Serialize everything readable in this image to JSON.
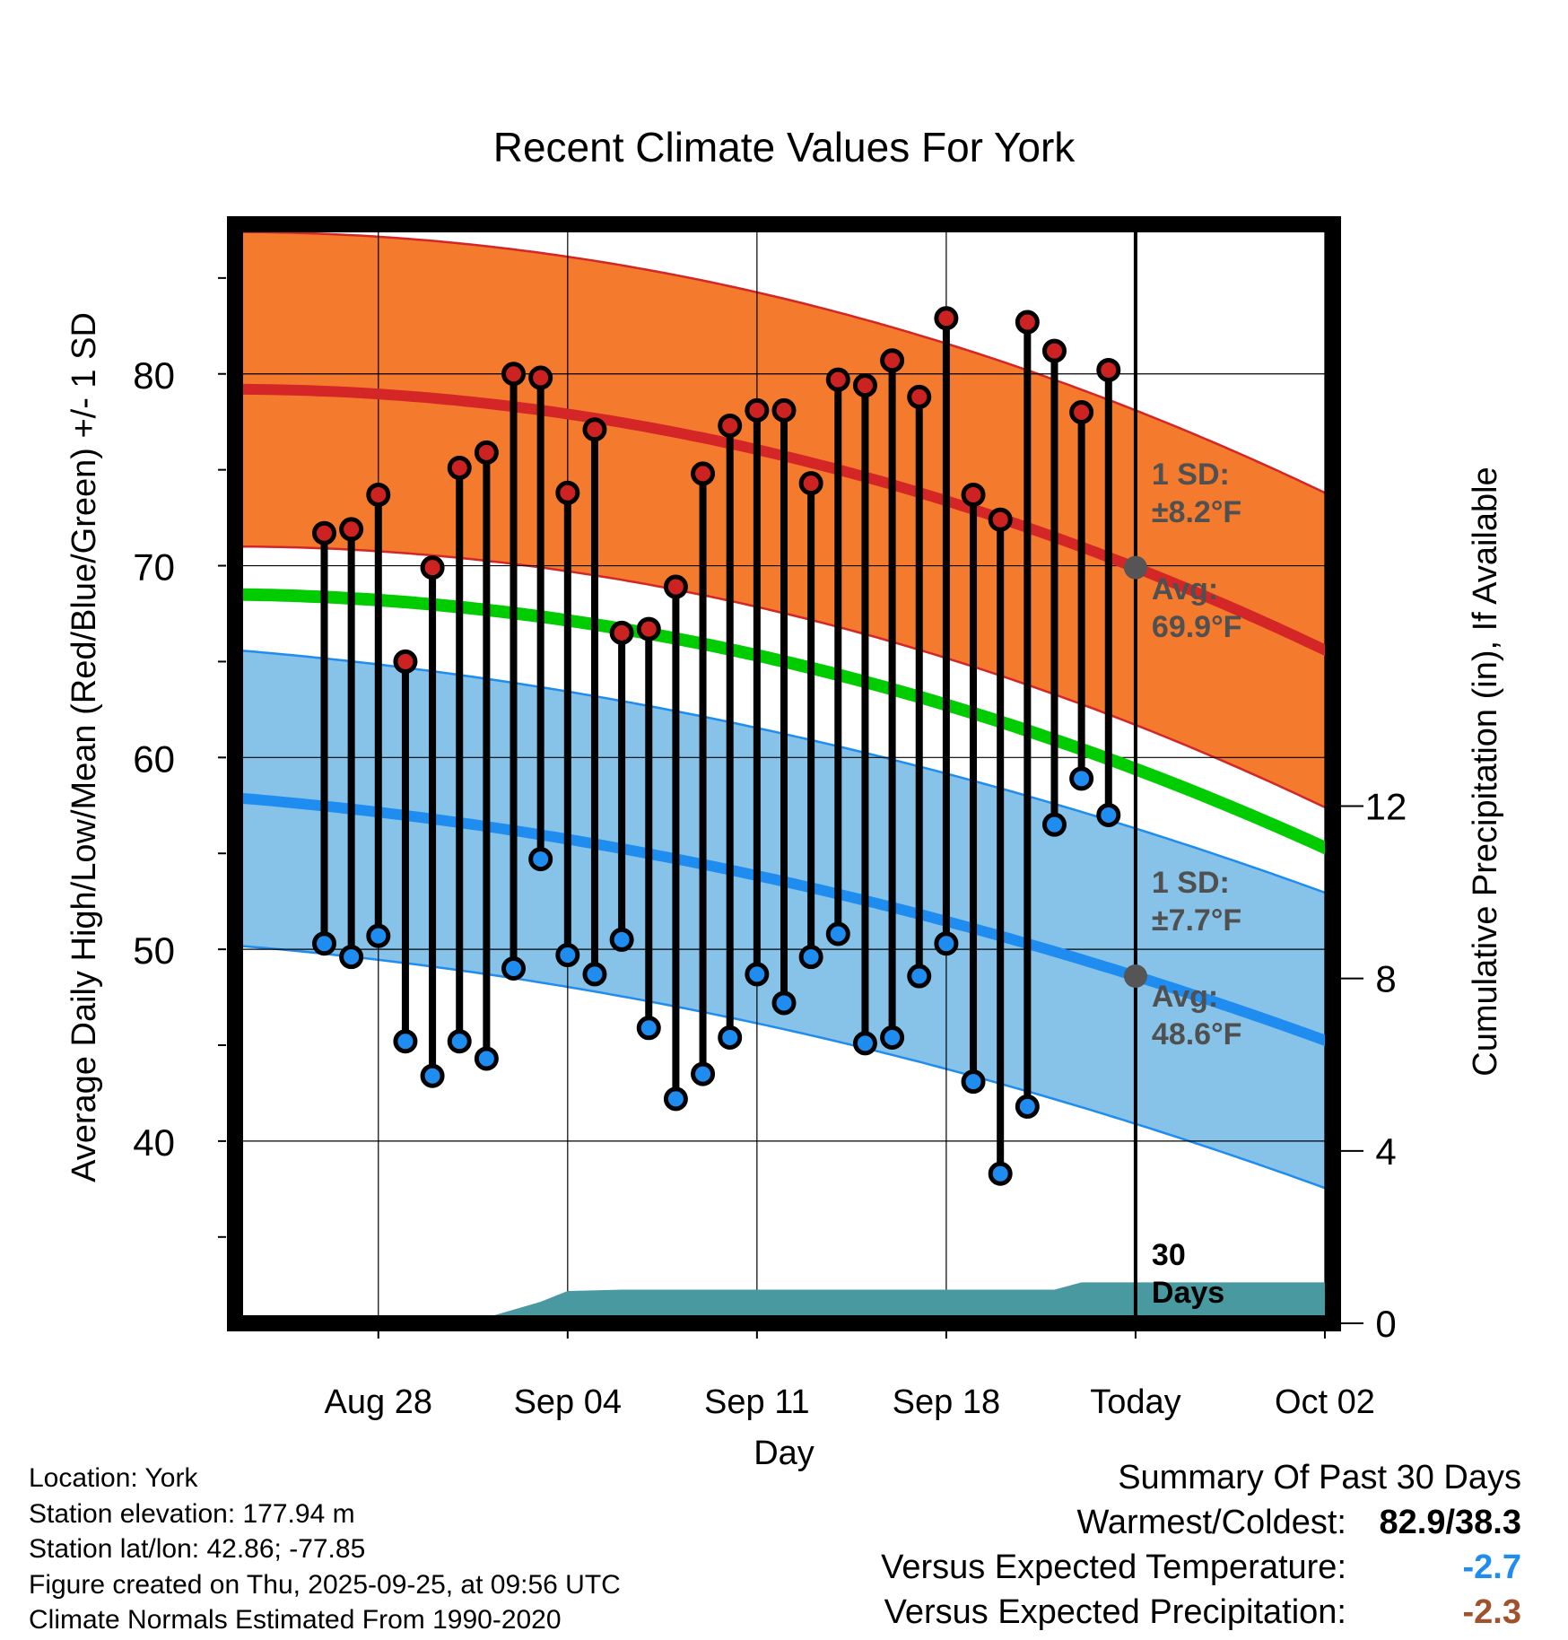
{
  "chart_data": {
    "type": "line",
    "title": "Recent Climate Values For York",
    "xlabel": "Day",
    "ylabel": "Average Daily High/Low/Mean (Red/Blue/Green) +/- 1 SD",
    "ylabel_right": "Cumulative Precipitation (in), If Available",
    "x_range_days": [
      -33.3,
      7.3
    ],
    "ylim": [
      30.5,
      87.8
    ],
    "y_ticks": [
      40,
      50,
      60,
      70,
      80
    ],
    "x_ticks": [
      {
        "day": -28,
        "label": "Aug 28"
      },
      {
        "day": -21,
        "label": "Sep 04"
      },
      {
        "day": -14,
        "label": "Sep 11"
      },
      {
        "day": -7,
        "label": "Sep 18"
      },
      {
        "day": 0,
        "label": "Today"
      },
      {
        "day": 7,
        "label": "Oct 02"
      }
    ],
    "precip_axis": {
      "range": [
        0,
        25.5
      ],
      "ticks": [
        0,
        4,
        8,
        12
      ]
    },
    "normals": {
      "high_avg": {
        "start": 79.2,
        "at_today": 69.9,
        "end": 65.4
      },
      "high_sd": 8.2,
      "low_avg": {
        "start": 57.9,
        "at_today": 48.6,
        "end": 45.1
      },
      "low_sd": 7.7,
      "mean_avg": {
        "start": 68.5,
        "at_today": 59.4,
        "end": 55.1
      }
    },
    "daily": {
      "days": [
        -30,
        -29,
        -28,
        -27,
        -26,
        -25,
        -24,
        -23,
        -22,
        -21,
        -20,
        -19,
        -18,
        -17,
        -16,
        -15,
        -14,
        -13,
        -12,
        -11,
        -10,
        -9,
        -8,
        -7,
        -6,
        -5,
        -4,
        -3,
        -2,
        -1
      ],
      "highs": [
        71.7,
        71.9,
        73.7,
        65.0,
        69.9,
        75.1,
        75.9,
        80.0,
        79.8,
        73.8,
        77.1,
        66.5,
        66.7,
        68.9,
        74.8,
        77.3,
        78.1,
        78.1,
        74.3,
        79.7,
        79.4,
        80.7,
        78.8,
        82.9,
        73.7,
        72.4,
        82.7,
        81.2,
        78.0,
        80.2
      ],
      "lows": [
        50.3,
        49.6,
        50.7,
        45.2,
        43.4,
        45.2,
        44.3,
        49.0,
        54.7,
        49.7,
        48.7,
        50.5,
        45.9,
        42.2,
        43.5,
        45.4,
        48.7,
        47.2,
        49.6,
        50.8,
        45.1,
        45.4,
        48.6,
        50.3,
        43.1,
        38.3,
        41.8,
        56.5,
        58.9,
        57.0
      ]
    },
    "precip_cumulative": {
      "days": [
        -33.3,
        -28.2,
        -25.8,
        -24.3,
        -22,
        -21,
        -19,
        -17,
        -14,
        -11,
        -8,
        -5,
        -3,
        -2,
        0,
        7.3
      ],
      "values": [
        0,
        0.05,
        0.05,
        0.08,
        0.5,
        0.75,
        0.78,
        0.78,
        0.78,
        0.78,
        0.78,
        0.78,
        0.78,
        0.95,
        0.95,
        0.95
      ]
    },
    "annotations": {
      "high_sd_label": "1 SD:",
      "high_sd_value": "±8.2°F",
      "high_avg_label": "Avg:",
      "high_avg_value": "69.9°F",
      "low_sd_label": "1 SD:",
      "low_sd_value": "±7.7°F",
      "low_avg_label": "Avg:",
      "low_avg_value": "48.6°F",
      "days_number": "30",
      "days_word": "Days"
    }
  },
  "station": {
    "location": "Location: York",
    "elevation": "Station elevation: 177.94 m",
    "latlon": "Station lat/lon: 42.86; -77.85",
    "created": "Figure created on Thu, 2025-09-25, at 09:56 UTC",
    "normals_source": "Climate Normals Estimated From 1990-2020"
  },
  "summary": {
    "title": "Summary Of Past 30 Days",
    "warm_cold_label": "Warmest/Coldest:",
    "warm_cold_value": "82.9/38.3",
    "temp_label": "Versus Expected Temperature:",
    "temp_value": "-2.7",
    "precip_label": "Versus Expected Precipitation:",
    "precip_value": "-2.3"
  },
  "colors": {
    "high_band": "#f47a2e",
    "high_line": "#d42626",
    "high_band_edge": "#d42626",
    "low_band": "#87c3e8",
    "low_line": "#1f8cf0",
    "low_band_edge": "#1f8cf0",
    "mean_line": "#00cc00",
    "precip_fill": "#4899a0",
    "high_dot": "#cc2222",
    "low_dot": "#1f8cf0",
    "annot_text": "#505050",
    "temp_value": "#1f8cf0",
    "precip_value": "#a0522d"
  }
}
